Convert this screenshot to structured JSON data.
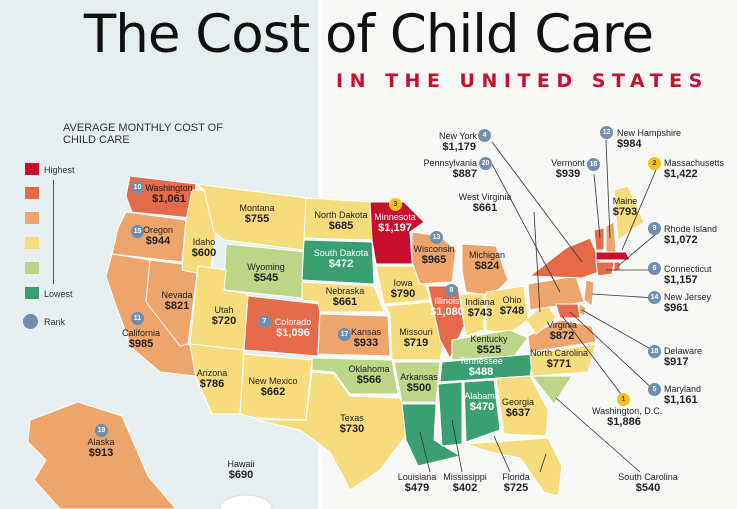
{
  "header": {
    "title": "The Cost of Child Care",
    "subtitle": "IN THE UNITED STATES"
  },
  "legend": {
    "title": "AVERAGE MONTHLY COST OF CHILD CARE",
    "highest": "Highest",
    "lowest": "Lowest",
    "rank": "Rank",
    "colors": [
      "#c8102e",
      "#e46a4a",
      "#eea56c",
      "#f7dc7e",
      "#bcd587",
      "#3a9f73"
    ]
  },
  "states": [
    {
      "id": "washington",
      "name": "Washington",
      "cost": "$1,061",
      "rank": "10"
    },
    {
      "id": "oregon",
      "name": "Oregon",
      "cost": "$944",
      "rank": "15"
    },
    {
      "id": "idaho",
      "name": "Idaho",
      "cost": "$600"
    },
    {
      "id": "montana",
      "name": "Montana",
      "cost": "$755"
    },
    {
      "id": "north-dakota",
      "name": "North Dakota",
      "cost": "$685"
    },
    {
      "id": "minnesota",
      "name": "Minnesota",
      "cost": "$1,197",
      "rank": "3"
    },
    {
      "id": "wisconsin",
      "name": "Wisconsin",
      "cost": "$965",
      "rank": "13"
    },
    {
      "id": "michigan",
      "name": "Michigan",
      "cost": "$824"
    },
    {
      "id": "south-dakota",
      "name": "South Dakota",
      "cost": "$472"
    },
    {
      "id": "wyoming",
      "name": "Wyoming",
      "cost": "$545"
    },
    {
      "id": "nevada",
      "name": "Nevada",
      "cost": "$821"
    },
    {
      "id": "california",
      "name": "California",
      "cost": "$985",
      "rank": "11"
    },
    {
      "id": "utah",
      "name": "Utah",
      "cost": "$720"
    },
    {
      "id": "colorado",
      "name": "Colorado",
      "cost": "$1,096",
      "rank": "7"
    },
    {
      "id": "nebraska",
      "name": "Nebraska",
      "cost": "$661"
    },
    {
      "id": "iowa",
      "name": "Iowa",
      "cost": "$790"
    },
    {
      "id": "illinois",
      "name": "Illinois",
      "cost": "$1,080",
      "rank": "8"
    },
    {
      "id": "indiana",
      "name": "Indiana",
      "cost": "$743"
    },
    {
      "id": "ohio",
      "name": "Ohio",
      "cost": "$748"
    },
    {
      "id": "kansas",
      "name": "Kansas",
      "cost": "$933",
      "rank": "17"
    },
    {
      "id": "missouri",
      "name": "Missouri",
      "cost": "$719"
    },
    {
      "id": "kentucky",
      "name": "Kentucky",
      "cost": "$525"
    },
    {
      "id": "tennessee",
      "name": "Tennessee",
      "cost": "$488"
    },
    {
      "id": "virginia",
      "name": "Virginia",
      "cost": "$872"
    },
    {
      "id": "north-carolina",
      "name": "North Carolina",
      "cost": "$771"
    },
    {
      "id": "arizona",
      "name": "Arizona",
      "cost": "$786"
    },
    {
      "id": "new-mexico",
      "name": "New Mexico",
      "cost": "$662"
    },
    {
      "id": "oklahoma",
      "name": "Oklahoma",
      "cost": "$566"
    },
    {
      "id": "arkansas",
      "name": "Arkansas",
      "cost": "$500"
    },
    {
      "id": "alabama",
      "name": "Alabama",
      "cost": "$470"
    },
    {
      "id": "georgia",
      "name": "Georgia",
      "cost": "$637"
    },
    {
      "id": "texas",
      "name": "Texas",
      "cost": "$730"
    },
    {
      "id": "alaska",
      "name": "Alaska",
      "cost": "$913",
      "rank": "19"
    },
    {
      "id": "hawaii",
      "name": "Hawaii",
      "cost": "$690"
    },
    {
      "id": "louisiana",
      "name": "Louisiana",
      "cost": "$479"
    },
    {
      "id": "mississippi",
      "name": "Mississippi",
      "cost": "$402"
    },
    {
      "id": "florida",
      "name": "Florida",
      "cost": "$725"
    },
    {
      "id": "south-carolina",
      "name": "South Carolina",
      "cost": "$540"
    },
    {
      "id": "new-york",
      "name": "New York",
      "cost": "$1,179",
      "rank": "4"
    },
    {
      "id": "pennsylvania",
      "name": "Pennsylvania",
      "cost": "$887",
      "rank": "20"
    },
    {
      "id": "west-virginia",
      "name": "West Virginia",
      "cost": "$661"
    },
    {
      "id": "vermont",
      "name": "Vermont",
      "cost": "$939",
      "rank": "16"
    },
    {
      "id": "new-hampshire",
      "name": "New Hampshire",
      "cost": "$984",
      "rank": "12"
    },
    {
      "id": "maine",
      "name": "Maine",
      "cost": "$793"
    },
    {
      "id": "massachusetts",
      "name": "Massachusetts",
      "cost": "$1,422",
      "rank": "2"
    },
    {
      "id": "rhode-island",
      "name": "Rhode Island",
      "cost": "$1,072",
      "rank": "9"
    },
    {
      "id": "connecticut",
      "name": "Connecticut",
      "cost": "$1,157",
      "rank": "6"
    },
    {
      "id": "new-jersey",
      "name": "New Jersey",
      "cost": "$961",
      "rank": "14"
    },
    {
      "id": "delaware",
      "name": "Delaware",
      "cost": "$917",
      "rank": "18"
    },
    {
      "id": "maryland",
      "name": "Maryland",
      "cost": "$1,161",
      "rank": "5"
    },
    {
      "id": "washington-dc",
      "name": "Washington, D.C.",
      "cost": "$1,886",
      "rank": "1"
    }
  ]
}
